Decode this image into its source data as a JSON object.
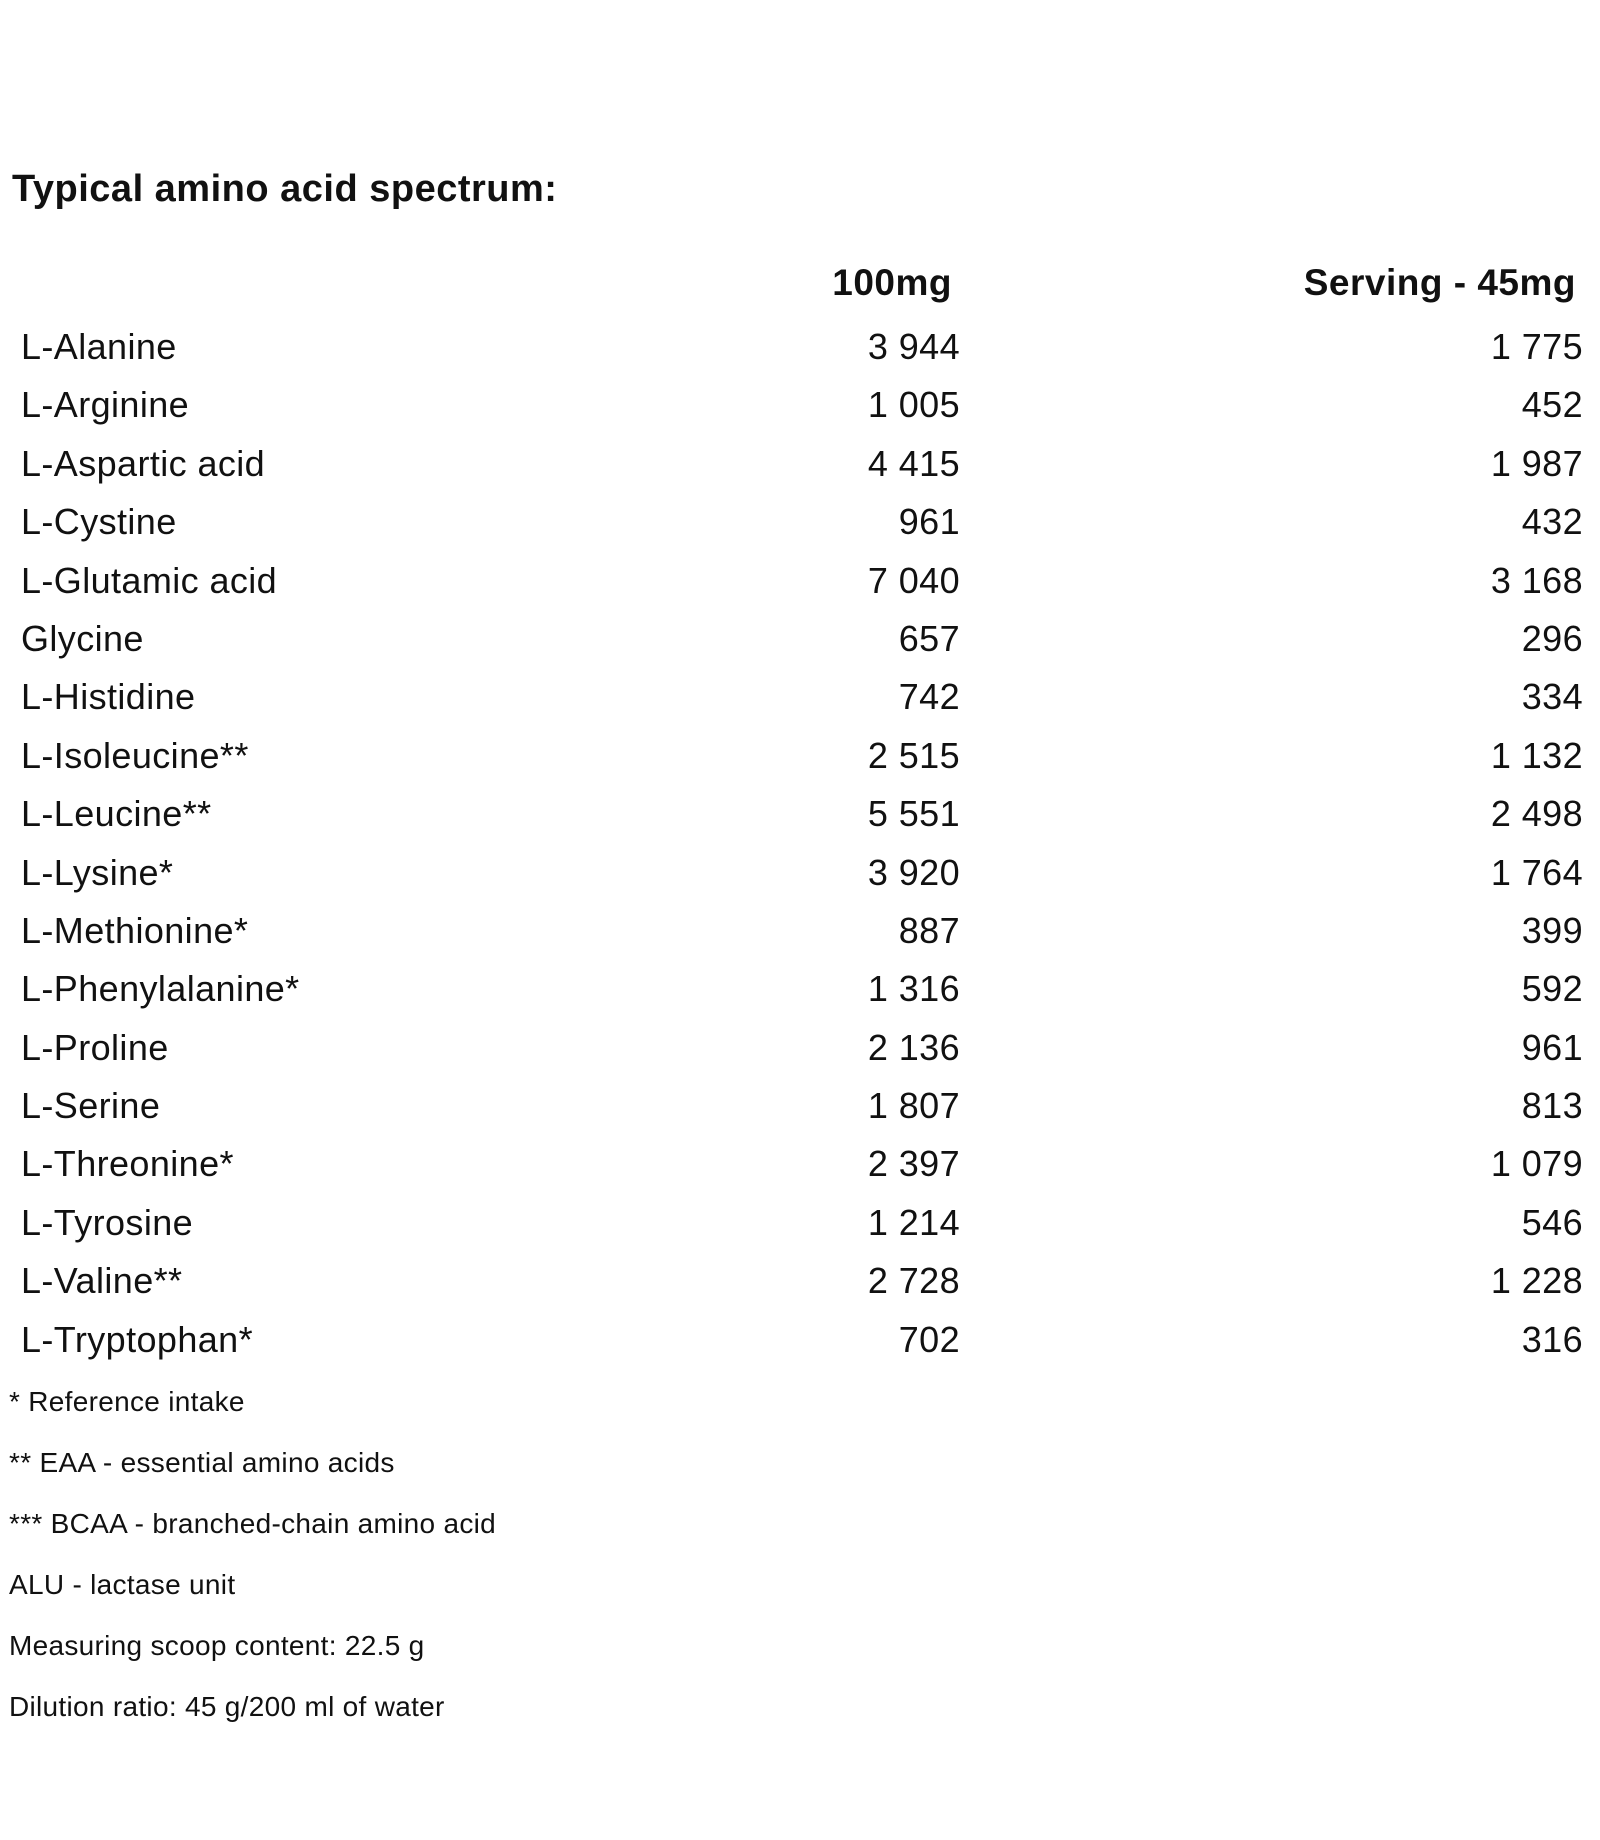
{
  "title": "Typical amino acid spectrum:",
  "columns": [
    "100mg",
    "Serving - 45mg"
  ],
  "rows": [
    {
      "name": "L-Alanine",
      "per100": "3 944",
      "serving": "1 775"
    },
    {
      "name": "L-Arginine",
      "per100": "1 005",
      "serving": "452"
    },
    {
      "name": "L-Aspartic acid",
      "per100": "4 415",
      "serving": "1 987"
    },
    {
      "name": "L-Cystine",
      "per100": "961",
      "serving": "432"
    },
    {
      "name": "L-Glutamic acid",
      "per100": "7 040",
      "serving": "3 168"
    },
    {
      "name": "Glycine",
      "per100": "657",
      "serving": "296"
    },
    {
      "name": "L-Histidine",
      "per100": "742",
      "serving": "334"
    },
    {
      "name": "L-Isoleucine**",
      "per100": "2 515",
      "serving": "1 132"
    },
    {
      "name": "L-Leucine**",
      "per100": "5 551",
      "serving": "2 498"
    },
    {
      "name": "L-Lysine*",
      "per100": "3 920",
      "serving": "1 764"
    },
    {
      "name": "L-Methionine*",
      "per100": "887",
      "serving": "399"
    },
    {
      "name": "L-Phenylalanine*",
      "per100": "1 316",
      "serving": "592"
    },
    {
      "name": "L-Proline",
      "per100": "2 136",
      "serving": "961"
    },
    {
      "name": "L-Serine",
      "per100": "1 807",
      "serving": "813"
    },
    {
      "name": "L-Threonine*",
      "per100": "2 397",
      "serving": "1 079"
    },
    {
      "name": "L-Tyrosine",
      "per100": "1 214",
      "serving": "546"
    },
    {
      "name": "L-Valine**",
      "per100": "2 728",
      "serving": "1 228"
    },
    {
      "name": "L-Tryptophan*",
      "per100": "702",
      "serving": "316"
    }
  ],
  "notes": [
    "* Reference intake",
    "** EAA - essential amino acids",
    "*** BCAA - branched-chain amino acid",
    "ALU - lactase unit",
    "Measuring scoop content: 22.5 g",
    "Dilution ratio: 45 g/200 ml of water"
  ]
}
